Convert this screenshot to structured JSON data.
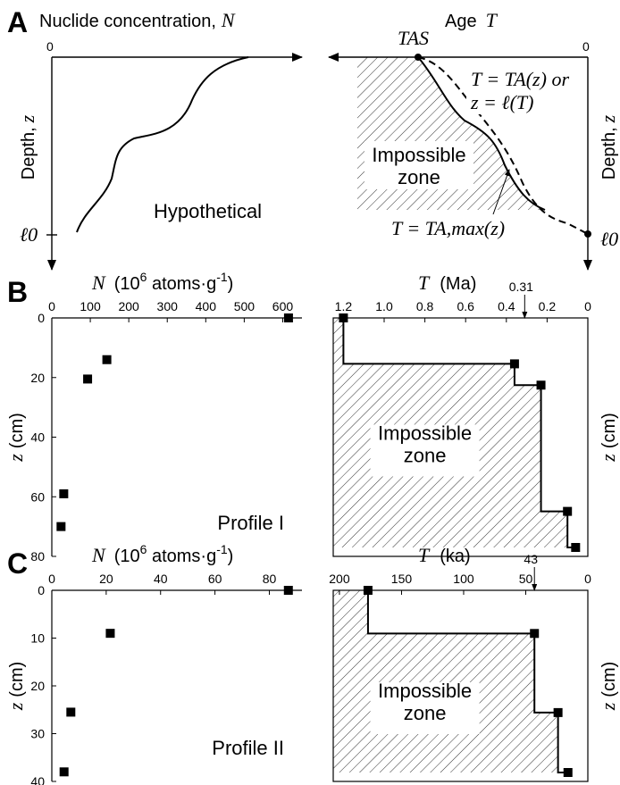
{
  "panel_a": {
    "letter": "A",
    "left_title": "Nuclide concentration,",
    "left_title_var": "N",
    "right_title": "Age",
    "right_title_var": "T",
    "zero_left": "0",
    "zero_right": "0",
    "depth_left": "Depth,",
    "depth_right": "Depth,",
    "depth_var": "z",
    "ell0_left": "ℓ0",
    "ell0_right": "ℓ0",
    "hypothetical": "Hypothetical",
    "tas": "TAS",
    "curve_label_1": "T = TA(z) or",
    "curve_label_2": "z = ℓ(T)",
    "impossible_1": "Impossible",
    "impossible_2": "zone",
    "tmax_label": "T = TA,max(z)"
  },
  "chart_data": [
    {
      "type": "scatter",
      "panel": "B-left",
      "letter": "B",
      "title_var": "N",
      "title": "(10^6 atoms·g^-1)",
      "xlim": [
        0,
        650
      ],
      "ylim": [
        0,
        80
      ],
      "xticks": [
        "0",
        "100",
        "200",
        "300",
        "400",
        "500",
        "600"
      ],
      "yticks": [
        "0",
        "20",
        "40",
        "60",
        "80"
      ],
      "ylabel": "z (cm)",
      "profile_label": "Profile I",
      "x": [
        615,
        143,
        93,
        31,
        24
      ],
      "y": [
        0,
        14,
        20.5,
        59,
        70
      ]
    },
    {
      "type": "line",
      "panel": "B-right",
      "title_var": "T",
      "title": "(Ma)",
      "xlim": [
        1.25,
        0
      ],
      "ylim": [
        0,
        70
      ],
      "xticks": [
        "1.2",
        "1.0",
        "0.8",
        "0.6",
        "0.4",
        "0.2",
        "0"
      ],
      "arrow_value": "0.31",
      "ylabel": "z (cm)",
      "zone_1": "Impossible",
      "zone_2": "zone",
      "step_x": [
        1.2,
        1.2,
        0.36,
        0.36,
        0.23,
        0.23,
        0.1,
        0.1,
        0.06
      ],
      "step_y": [
        0,
        14,
        14,
        20.5,
        20.5,
        59,
        59,
        70,
        70
      ],
      "points_x": [
        1.2,
        0.36,
        0.23,
        0.1,
        0.06
      ],
      "points_y": [
        0,
        14,
        20.5,
        59,
        70
      ]
    },
    {
      "type": "scatter",
      "panel": "C-left",
      "letter": "C",
      "title_var": "N",
      "title": "(10^6 atoms·g^-1)",
      "xlim": [
        0,
        92
      ],
      "ylim": [
        0,
        40
      ],
      "xticks": [
        "0",
        "20",
        "40",
        "60",
        "80"
      ],
      "yticks": [
        "0",
        "10",
        "20",
        "30",
        "40"
      ],
      "ylabel": "z (cm)",
      "profile_label": "Profile II",
      "x": [
        87,
        21.5,
        7,
        4.5
      ],
      "y": [
        0,
        9,
        25.5,
        38
      ]
    },
    {
      "type": "line",
      "panel": "C-right",
      "title_var": "T",
      "title": "(ka)",
      "xlim": [
        205,
        0
      ],
      "ylim": [
        0,
        38
      ],
      "xticks": [
        "200",
        "150",
        "100",
        "50",
        "0"
      ],
      "arrow_value": "43",
      "ylabel": "z (cm)",
      "zone_1": "Impossible",
      "zone_2": "zone",
      "step_x": [
        177,
        177,
        43,
        43,
        24,
        24,
        16
      ],
      "step_y": [
        0,
        9,
        9,
        25.5,
        25.5,
        38,
        38
      ],
      "points_x": [
        177,
        43,
        24,
        16
      ],
      "points_y": [
        0,
        9,
        25.5,
        38
      ]
    }
  ]
}
